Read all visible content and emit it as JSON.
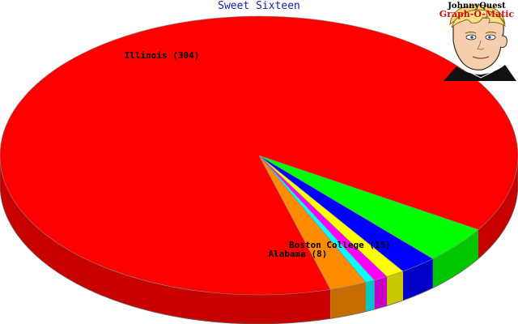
{
  "chart_data": {
    "type": "pie",
    "style": "3d",
    "title": "Sweet Sixteen",
    "slices": [
      {
        "label": "Illinois",
        "value": 304,
        "color": "#ff0000",
        "label_text": "Illinois (304)"
      },
      {
        "label": "Boston College",
        "value": 15,
        "color": "#00ff00",
        "label_text": "Boston College (15)"
      },
      {
        "label": "",
        "value": 8,
        "color": "#0000ff",
        "label_text": ""
      },
      {
        "label": "",
        "value": 4,
        "color": "#ffff00",
        "label_text": ""
      },
      {
        "label": "",
        "value": 3,
        "color": "#ff00ff",
        "label_text": ""
      },
      {
        "label": "",
        "value": 2,
        "color": "#00ffff",
        "label_text": ""
      },
      {
        "label": "Alabama",
        "value": 8,
        "color": "#ff8c00",
        "label_text": "Alabama (8)"
      }
    ]
  },
  "logo": {
    "line1": "JohnnyQuest",
    "line2": "Graph-O-Matic"
  }
}
